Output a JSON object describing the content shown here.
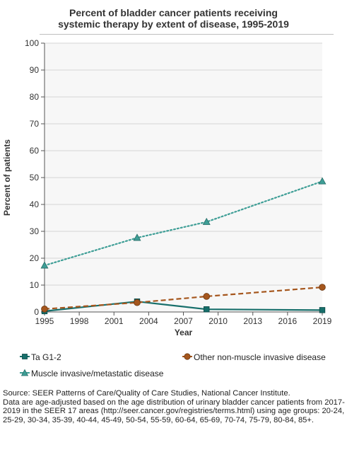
{
  "chart_data": {
    "type": "line",
    "title": "Percent of bladder cancer patients receiving systemic therapy by extent of disease, 1995-2019",
    "title_lines": [
      "Percent of bladder cancer patients receiving",
      "systemic therapy by extent of disease, 1995-2019"
    ],
    "xlabel": "Year",
    "ylabel": "Percent of patients",
    "xlim": [
      1995,
      2019
    ],
    "ylim": [
      0,
      100
    ],
    "xticks": [
      1995,
      1998,
      2001,
      2004,
      2007,
      2010,
      2013,
      2016,
      2019
    ],
    "yticks": [
      0,
      10,
      20,
      30,
      40,
      50,
      60,
      70,
      80,
      90,
      100
    ],
    "grid": "horizontal",
    "legend_position": "bottom",
    "series": [
      {
        "name": "Ta G1-2",
        "color": "#176f6b",
        "line_style": "solid",
        "marker": "square",
        "x": [
          1995,
          2003,
          2009,
          2019
        ],
        "y": [
          0.3,
          3.9,
          1.0,
          0.7
        ]
      },
      {
        "name": "Other non-muscle invasive disease",
        "color": "#a5561d",
        "line_style": "dashed",
        "marker": "circle",
        "x": [
          1995,
          2003,
          2009,
          2019
        ],
        "y": [
          1.1,
          3.5,
          5.8,
          9.2
        ]
      },
      {
        "name": "Muscle invasive/metastatic disease",
        "color": "#3e9e96",
        "line_style": "dotted",
        "marker": "triangle",
        "x": [
          1995,
          2003,
          2009,
          2019
        ],
        "y": [
          17.3,
          27.6,
          33.5,
          48.6
        ]
      }
    ]
  },
  "footnote": {
    "lines": [
      "Source: SEER Patterns of Care/Quality of Care Studies, National Cancer Institute.",
      "Data are age-adjusted based on the age distribution of urinary bladder cancer patients from 2017-2019 in the SEER 17 areas (http://seer.cancer.gov/registries/terms.html) using age groups: 20-24, 25-29, 30-34, 35-39, 40-44, 45-49, 50-54, 55-59, 60-64, 65-69, 70-74, 75-79, 80-84, 85+."
    ]
  }
}
